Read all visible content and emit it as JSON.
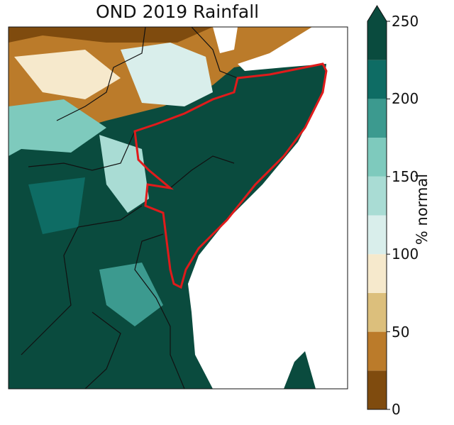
{
  "title": "OND 2019 Rainfall",
  "colorbar": {
    "label": "% normal",
    "ticks": [
      "0",
      "50",
      "100",
      "150",
      "200",
      "250"
    ],
    "bounds": [
      0,
      25,
      50,
      75,
      100,
      125,
      150,
      175,
      200,
      225,
      250
    ],
    "colors": [
      "#7f4b0e",
      "#bb7b2a",
      "#dcbf7c",
      "#f6e9cc",
      "#d9eeeb",
      "#a9dcd4",
      "#7ecabd",
      "#3c9a8f",
      "#0e6c64",
      "#0a4b3e"
    ],
    "extend": "max"
  },
  "map": {
    "ocean_color": "#ffffff",
    "outline_color": "#e01b1b",
    "border_color": "#111111"
  }
}
